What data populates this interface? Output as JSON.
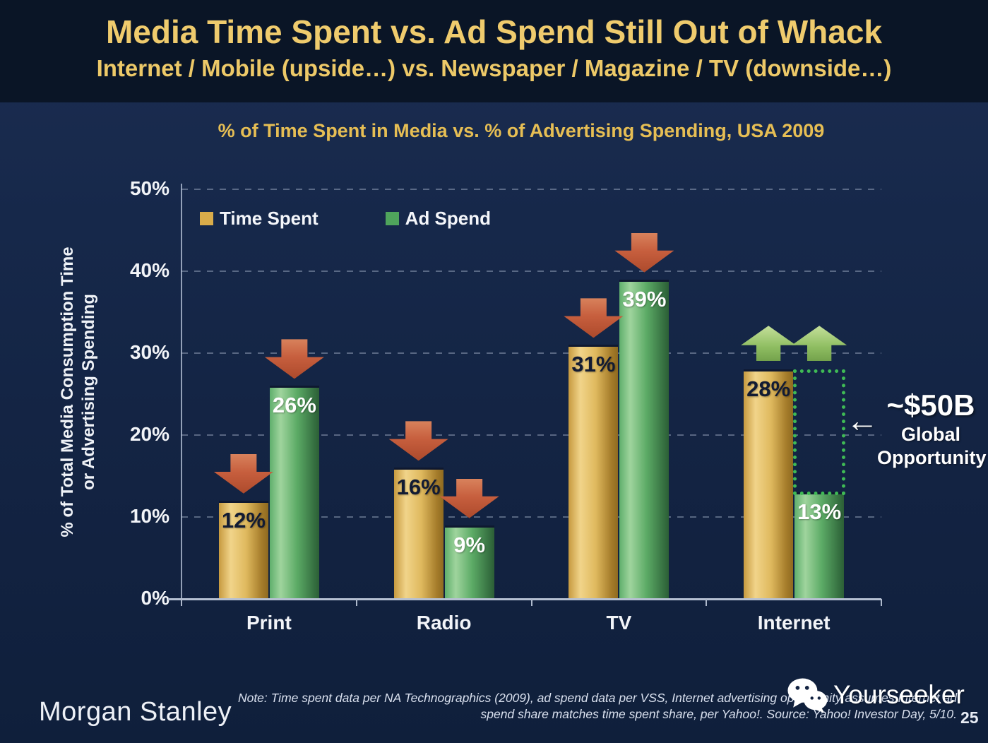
{
  "header": {
    "title": "Media Time Spent vs. Ad Spend Still Out of Whack",
    "subtitle": "Internet / Mobile (upside…) vs. Newspaper / Magazine / TV (downside…)"
  },
  "chart_data": {
    "type": "bar",
    "title": "% of Time Spent in Media vs. % of Advertising Spending, USA 2009",
    "categories": [
      "Print",
      "Radio",
      "TV",
      "Internet"
    ],
    "series": [
      {
        "name": "Time Spent",
        "color": "#D9AC4A",
        "label_color": "#121B33",
        "values": [
          12,
          16,
          31,
          28
        ]
      },
      {
        "name": "Ad Spend",
        "color": "#4FA45C",
        "label_color": "#FFFFFF",
        "values": [
          26,
          9,
          39,
          13
        ]
      }
    ],
    "value_suffix": "%",
    "ylabel_line1": "% of Total Media Consumption Time",
    "ylabel_line2": "or Advertising Spending",
    "yticks": [
      "0%",
      "10%",
      "20%",
      "30%",
      "40%",
      "50%"
    ],
    "ytick_step": 10,
    "ylim": [
      0,
      50
    ],
    "grid": "horizontal-dashed",
    "legend_position": "top-left-inside",
    "trend_by_category": [
      "down",
      "down",
      "down",
      "up"
    ],
    "annotation": {
      "category": "Internet",
      "value": "~$50B",
      "label_line1": "Global",
      "label_line2": "Opportunity"
    }
  },
  "icons": {
    "left_arrow": "←"
  },
  "footer": {
    "brand": "Morgan Stanley",
    "note_line1": "Note: Time spent data per NA Technographics (2009), ad spend data per VSS, Internet advertising opportunity assumes Internet ad",
    "note_line2": "spend share matches time spent share, per Yahoo!. Source: Yahoo! Investor Day, 5/10.",
    "watermark": "Yourseeker",
    "page_number": "25"
  },
  "colors": {
    "background": "#152847",
    "header_background": "#0A1526",
    "title_gold": "#EFCB6D",
    "bar_gold": "#D9AC4A",
    "bar_green": "#4FA45C",
    "arrow_down_red": "#C75F3E",
    "arrow_up_green": "#8FBE62",
    "opportunity_green": "#3FBA55"
  }
}
